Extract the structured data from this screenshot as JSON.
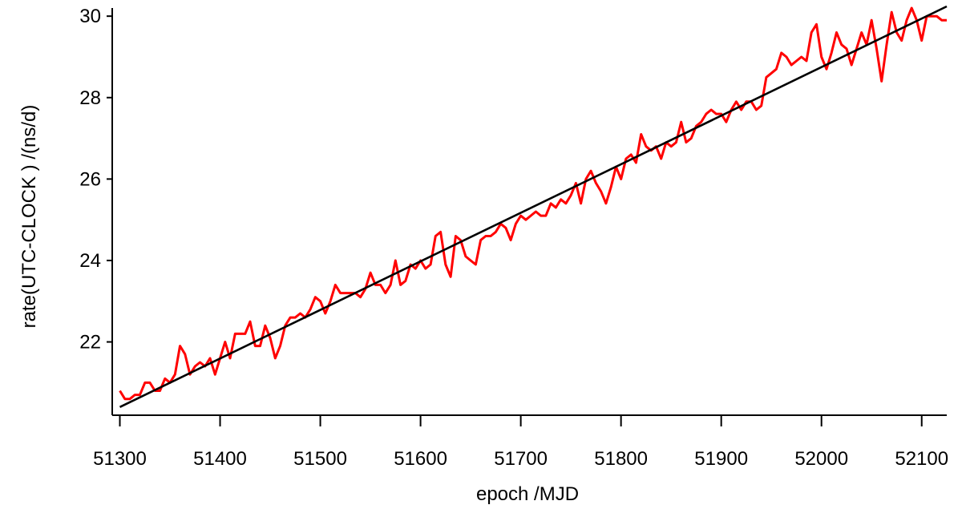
{
  "chart_data": {
    "type": "line",
    "title": "",
    "xlabel": "epoch /MJD",
    "ylabel": "rate(UTC-CLOCK ) /(ns/d)",
    "xlim": [
      51298,
      52125
    ],
    "ylim": [
      20.2,
      30.2
    ],
    "grid": false,
    "x_ticks": [
      51300,
      51400,
      51500,
      51600,
      51700,
      51800,
      51900,
      52000,
      52100
    ],
    "y_ticks": [
      22,
      24,
      26,
      28,
      30
    ],
    "x_tick_labels": [
      "51300",
      "51400",
      "51500",
      "51600",
      "51700",
      "51800",
      "51900",
      "52000",
      "52100"
    ],
    "y_tick_labels": [
      "22",
      "24",
      "26",
      "28",
      "30"
    ],
    "series": [
      {
        "color": "#ff0000",
        "x": [
          51300,
          51305,
          51310,
          51315,
          51320,
          51325,
          51330,
          51335,
          51340,
          51345,
          51350,
          51355,
          51360,
          51365,
          51370,
          51375,
          51380,
          51385,
          51390,
          51395,
          51400,
          51405,
          51410,
          51415,
          51420,
          51425,
          51430,
          51435,
          51440,
          51445,
          51450,
          51455,
          51460,
          51465,
          51470,
          51475,
          51480,
          51485,
          51490,
          51495,
          51500,
          51505,
          51510,
          51515,
          51520,
          51525,
          51530,
          51535,
          51540,
          51545,
          51550,
          51555,
          51560,
          51565,
          51570,
          51575,
          51580,
          51585,
          51590,
          51595,
          51600,
          51605,
          51610,
          51615,
          51620,
          51625,
          51630,
          51635,
          51640,
          51645,
          51650,
          51655,
          51660,
          51665,
          51670,
          51675,
          51680,
          51685,
          51690,
          51695,
          51700,
          51705,
          51710,
          51715,
          51720,
          51725,
          51730,
          51735,
          51740,
          51745,
          51750,
          51755,
          51760,
          51765,
          51770,
          51775,
          51780,
          51785,
          51790,
          51795,
          51800,
          51805,
          51810,
          51815,
          51820,
          51825,
          51830,
          51835,
          51840,
          51845,
          51850,
          51855,
          51860,
          51865,
          51870,
          51875,
          51880,
          51885,
          51890,
          51895,
          51900,
          51905,
          51910,
          51915,
          51920,
          51925,
          51930,
          51935,
          51940,
          51945,
          51950,
          51955,
          51960,
          51965,
          51970,
          51975,
          51980,
          51985,
          51990,
          51995,
          52000,
          52005,
          52010,
          52015,
          52020,
          52025,
          52030,
          52035,
          52040,
          52045,
          52050,
          52055,
          52060,
          52065,
          52070,
          52075,
          52080,
          52085,
          52090,
          52095,
          52100,
          52105,
          52110,
          52115,
          52120,
          52125
        ],
        "y": [
          20.8,
          20.6,
          20.6,
          20.7,
          20.7,
          21.0,
          21.0,
          20.8,
          20.8,
          21.1,
          21.0,
          21.2,
          21.9,
          21.7,
          21.2,
          21.4,
          21.5,
          21.4,
          21.6,
          21.2,
          21.6,
          22.0,
          21.6,
          22.2,
          22.2,
          22.2,
          22.5,
          21.9,
          21.9,
          22.4,
          22.1,
          21.6,
          21.9,
          22.4,
          22.6,
          22.6,
          22.7,
          22.6,
          22.8,
          23.1,
          23.0,
          22.7,
          23.0,
          23.4,
          23.2,
          23.2,
          23.2,
          23.2,
          23.1,
          23.3,
          23.7,
          23.4,
          23.4,
          23.2,
          23.4,
          24.0,
          23.4,
          23.5,
          23.9,
          23.8,
          24.0,
          23.8,
          23.9,
          24.6,
          24.7,
          23.9,
          23.6,
          24.6,
          24.5,
          24.1,
          24.0,
          23.9,
          24.5,
          24.6,
          24.6,
          24.7,
          24.9,
          24.8,
          24.5,
          24.9,
          25.1,
          25.0,
          25.1,
          25.2,
          25.1,
          25.1,
          25.4,
          25.3,
          25.5,
          25.4,
          25.6,
          25.9,
          25.4,
          26.0,
          26.2,
          25.9,
          25.7,
          25.4,
          25.8,
          26.3,
          26.0,
          26.5,
          26.6,
          26.4,
          27.1,
          26.8,
          26.7,
          26.8,
          26.5,
          26.9,
          26.8,
          26.9,
          27.4,
          26.9,
          27.0,
          27.3,
          27.4,
          27.6,
          27.7,
          27.6,
          27.6,
          27.4,
          27.7,
          27.9,
          27.7,
          27.9,
          27.9,
          27.7,
          27.8,
          28.5,
          28.6,
          28.7,
          29.1,
          29.0,
          28.8,
          28.9,
          29.0,
          28.9,
          29.6,
          29.8,
          29.0,
          28.7,
          29.1,
          29.6,
          29.3,
          29.2,
          28.8,
          29.2,
          29.6,
          29.3,
          29.9,
          29.2,
          28.4,
          29.3,
          30.1,
          29.6,
          29.4,
          29.9,
          30.2,
          29.9,
          29.4,
          30.0,
          30.0,
          30.0,
          29.9,
          29.9
        ]
      },
      {
        "color": "#000000",
        "x": [
          51300,
          52125
        ],
        "y": [
          20.4,
          30.24
        ]
      }
    ]
  }
}
